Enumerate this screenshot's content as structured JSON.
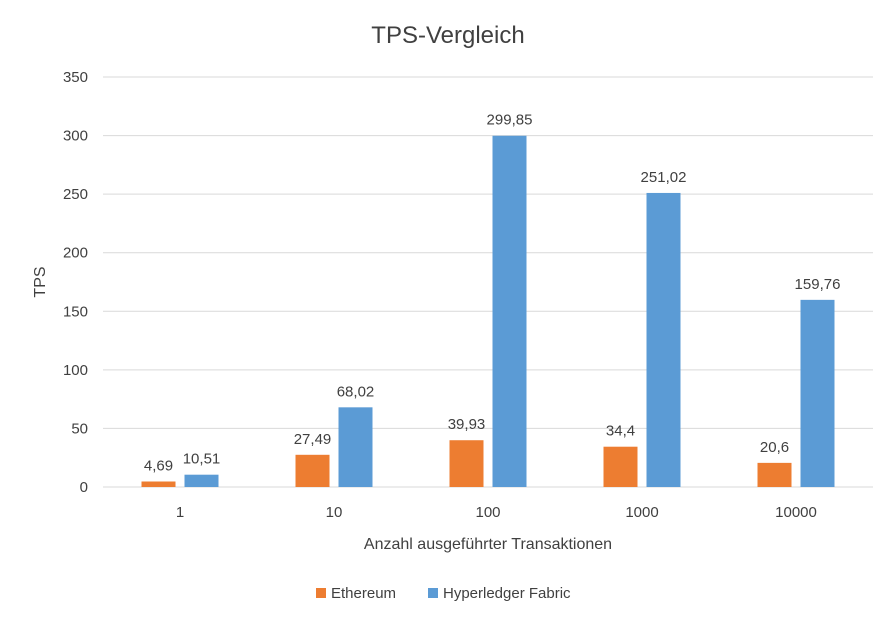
{
  "chart_data": {
    "type": "bar",
    "title": "TPS-Vergleich",
    "xlabel": "Anzahl ausgeführter Transaktionen",
    "ylabel": "TPS",
    "categories": [
      "1",
      "10",
      "100",
      "1000",
      "10000"
    ],
    "series": [
      {
        "name": "Ethereum",
        "color": "#ED7D31",
        "values": [
          4.69,
          27.49,
          39.93,
          34.4,
          20.6
        ],
        "labels": [
          "4,69",
          "27,49",
          "39,93",
          "34,4",
          "20,6"
        ]
      },
      {
        "name": "Hyperledger Fabric",
        "color": "#5B9BD5",
        "values": [
          10.51,
          68.02,
          299.85,
          251.02,
          159.76
        ],
        "labels": [
          "10,51",
          "68,02",
          "299,85",
          "251,02",
          "159,76"
        ]
      }
    ],
    "ylim": [
      0,
      350
    ],
    "yticks": [
      0,
      50,
      100,
      150,
      200,
      250,
      300,
      350
    ],
    "grid": true,
    "gridColor": "#D9D9D9",
    "legend_position": "bottom"
  }
}
